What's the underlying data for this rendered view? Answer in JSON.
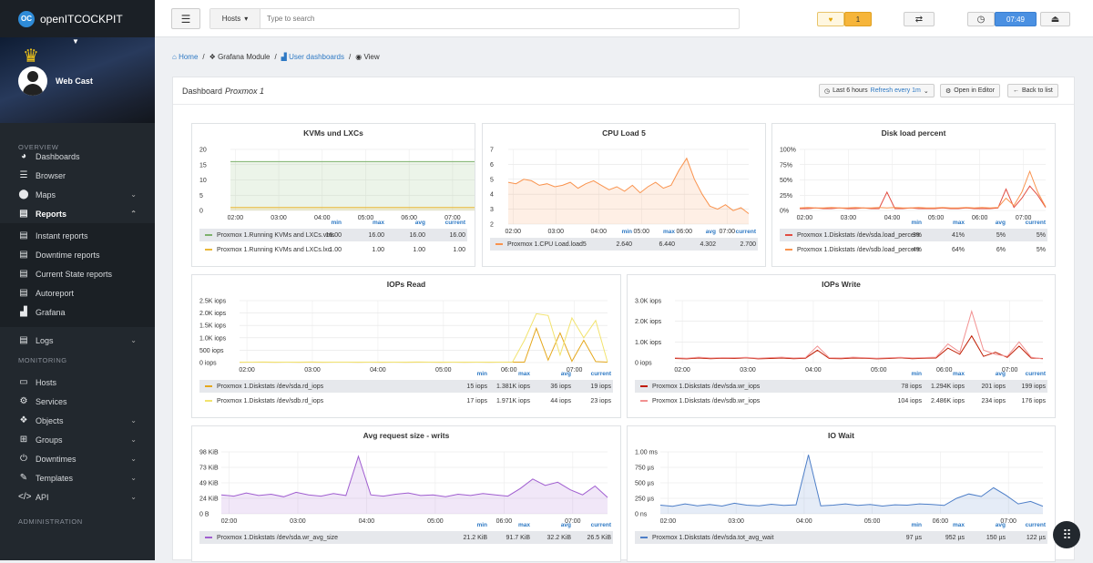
{
  "app": {
    "name": "openITCOCKPIT",
    "logo": "OC"
  },
  "profile": {
    "name": "Web Cast"
  },
  "sidebar": {
    "overview_label": "OVERVIEW",
    "monitoring_label": "MONITORING",
    "administration_label": "ADMINISTRATION",
    "overview": [
      {
        "label": "Dashboards",
        "icon": "dashboard-icon"
      },
      {
        "label": "Browser",
        "icon": "list-icon"
      },
      {
        "label": "Maps",
        "icon": "map-marker-icon"
      },
      {
        "label": "Reports",
        "icon": "file-icon"
      }
    ],
    "reports_sub": [
      {
        "label": "Instant reports",
        "icon": "file-icon"
      },
      {
        "label": "Downtime reports",
        "icon": "file-icon"
      },
      {
        "label": "Current State reports",
        "icon": "file-icon"
      },
      {
        "label": "Autoreport",
        "icon": "file-icon"
      },
      {
        "label": "Grafana",
        "icon": "area-chart-icon"
      }
    ],
    "logs": {
      "label": "Logs",
      "icon": "file-icon"
    },
    "monitoring": [
      {
        "label": "Hosts",
        "icon": "desktop-icon"
      },
      {
        "label": "Services",
        "icon": "cogs-icon"
      },
      {
        "label": "Objects",
        "icon": "cubes-icon"
      },
      {
        "label": "Groups",
        "icon": "sitemap-icon"
      },
      {
        "label": "Downtimes",
        "icon": "power-icon"
      },
      {
        "label": "Templates",
        "icon": "edit-icon"
      },
      {
        "label": "API",
        "icon": "code-icon"
      }
    ]
  },
  "topbar": {
    "hosts_label": "Hosts",
    "search_placeholder": "Type to search",
    "notification_count": "1",
    "time": "07:49"
  },
  "breadcrumb": {
    "home": "Home",
    "grafana": "Grafana Module",
    "user_dashboards": "User dashboards",
    "view": "View"
  },
  "panel": {
    "title_prefix": "Dashboard",
    "title_name": "Proxmox 1",
    "time_range": "Last 6 hours",
    "refresh": "Refresh every 1m",
    "open_editor": "Open in Editor",
    "back": "Back to list"
  },
  "legend_headers": {
    "min": "min",
    "max": "max",
    "avg": "avg",
    "current": "current"
  },
  "graphs": [
    {
      "title": "KVMs und LXCs",
      "chart_data": {
        "type": "area",
        "y_ticks": [
          "0",
          "5",
          "10",
          "15",
          "20"
        ],
        "x_ticks": [
          "02:00",
          "03:00",
          "04:00",
          "05:00",
          "06:00",
          "07:00"
        ],
        "ylim": [
          0,
          20
        ],
        "series": [
          {
            "name": "Proxmox 1.Running KVMs and LXCs.vms",
            "color": "#7eb26d",
            "values": [
              16,
              16,
              16,
              16,
              16,
              16,
              16,
              16,
              16,
              16,
              16,
              16,
              16,
              16,
              16,
              16,
              16,
              16,
              16,
              16,
              16,
              16,
              16,
              16,
              16,
              16,
              16,
              16,
              16,
              16,
              16,
              16
            ]
          },
          {
            "name": "Proxmox 1.Running KVMs and LXCs.lxc",
            "color": "#eab839",
            "values": [
              1,
              1,
              1,
              1,
              1,
              1,
              1,
              1,
              1,
              1,
              1,
              1,
              1,
              1,
              1,
              1,
              1,
              1,
              1,
              1,
              1,
              1,
              1,
              1,
              1,
              1,
              1,
              1,
              1,
              1,
              1,
              1
            ]
          }
        ]
      },
      "legend": [
        {
          "name": "Proxmox 1.Running KVMs and LXCs.vms",
          "color": "#7eb26d",
          "min": "16.00",
          "max": "16.00",
          "avg": "16.00",
          "current": "16.00"
        },
        {
          "name": "Proxmox 1.Running KVMs and LXCs.lxc",
          "color": "#eab839",
          "min": "1.00",
          "max": "1.00",
          "avg": "1.00",
          "current": "1.00"
        }
      ]
    },
    {
      "title": "CPU Load 5",
      "chart_data": {
        "type": "area",
        "y_ticks": [
          "2",
          "3",
          "4",
          "5",
          "6",
          "7"
        ],
        "x_ticks": [
          "02:00",
          "03:00",
          "04:00",
          "05:00",
          "06:00",
          "07:00"
        ],
        "ylim": [
          2,
          7
        ],
        "series": [
          {
            "name": "Proxmox 1.CPU Load.load5",
            "color": "#f9934e",
            "values": [
              4.8,
              4.7,
              5.0,
              4.9,
              4.6,
              4.7,
              4.5,
              4.6,
              4.8,
              4.4,
              4.7,
              4.9,
              4.6,
              4.3,
              4.5,
              4.2,
              4.6,
              4.1,
              4.5,
              4.8,
              4.4,
              4.6,
              5.6,
              6.4,
              5.0,
              4.0,
              3.2,
              3.0,
              3.3,
              2.9,
              3.1,
              2.7
            ]
          }
        ]
      },
      "legend": [
        {
          "name": "Proxmox 1.CPU Load.load5",
          "color": "#f9934e",
          "min": "2.640",
          "max": "6.440",
          "avg": "4.302",
          "current": "2.700"
        }
      ]
    },
    {
      "title": "Disk load percent",
      "chart_data": {
        "type": "line",
        "y_ticks": [
          "0%",
          "25%",
          "50%",
          "75%",
          "100%"
        ],
        "x_ticks": [
          "02:00",
          "03:00",
          "04:00",
          "05:00",
          "06:00",
          "07:00"
        ],
        "ylim": [
          0,
          100
        ],
        "series": [
          {
            "name": "Proxmox 1.Diskstats /dev/sda.load_percent",
            "color": "#e24d42",
            "values": [
              3,
              3,
              4,
              3,
              3,
              4,
              3,
              3,
              4,
              3,
              3,
              30,
              3,
              3,
              4,
              3,
              3,
              3,
              4,
              3,
              3,
              4,
              3,
              3,
              3,
              4,
              35,
              5,
              20,
              40,
              25,
              5
            ]
          },
          {
            "name": "Proxmox 1.Diskstats /dev/sdb.load_percent",
            "color": "#f9934e",
            "values": [
              4,
              5,
              4,
              4,
              5,
              4,
              4,
              5,
              4,
              4,
              5,
              4,
              5,
              4,
              4,
              5,
              4,
              4,
              5,
              4,
              4,
              5,
              4,
              5,
              4,
              5,
              20,
              8,
              30,
              64,
              30,
              6
            ]
          }
        ]
      },
      "legend": [
        {
          "name": "Proxmox 1.Diskstats /dev/sda.load_percent",
          "color": "#e24d42",
          "min": "3%",
          "max": "41%",
          "avg": "5%",
          "current": "5%"
        },
        {
          "name": "Proxmox 1.Diskstats /dev/sdb.load_percent",
          "color": "#f9934e",
          "min": "4%",
          "max": "64%",
          "avg": "6%",
          "current": "5%"
        }
      ]
    },
    {
      "title": "IOPs Read",
      "chart_data": {
        "type": "line",
        "y_ticks": [
          "0 iops",
          "500 iops",
          "1.0K iops",
          "1.5K iops",
          "2.0K iops",
          "2.5K iops"
        ],
        "x_ticks": [
          "02:00",
          "03:00",
          "04:00",
          "05:00",
          "06:00",
          "07:00"
        ],
        "ylim": [
          0,
          2500
        ],
        "series": [
          {
            "name": "Proxmox 1.Diskstats /dev/sda.rd_iops",
            "color": "#e5a81d",
            "values": [
              15,
              18,
              20,
              15,
              17,
              16,
              19,
              15,
              20,
              18,
              16,
              17,
              15,
              18,
              16,
              19,
              17,
              15,
              18,
              16,
              17,
              15,
              18,
              19,
              20,
              1381,
              100,
              1200,
              50,
              900,
              40,
              19
            ]
          },
          {
            "name": "Proxmox 1.Diskstats /dev/sdb.rd_iops",
            "color": "#f2e36e",
            "values": [
              17,
              20,
              22,
              18,
              19,
              17,
              21,
              18,
              20,
              19,
              17,
              18,
              20,
              19,
              17,
              21,
              18,
              17,
              19,
              20,
              18,
              17,
              19,
              21,
              900,
              1971,
              1900,
              300,
              1800,
              1000,
              1700,
              23
            ]
          }
        ]
      },
      "legend": [
        {
          "name": "Proxmox 1.Diskstats /dev/sda.rd_iops",
          "color": "#e5a81d",
          "min": "15 iops",
          "max": "1.381K iops",
          "avg": "36 iops",
          "current": "19 iops"
        },
        {
          "name": "Proxmox 1.Diskstats /dev/sdb.rd_iops",
          "color": "#f2e36e",
          "min": "17 iops",
          "max": "1.971K iops",
          "avg": "44 iops",
          "current": "23 iops"
        }
      ]
    },
    {
      "title": "IOPs Write",
      "chart_data": {
        "type": "line",
        "y_ticks": [
          "0 iops",
          "1.0K iops",
          "2.0K iops",
          "3.0K iops"
        ],
        "x_ticks": [
          "02:00",
          "03:00",
          "04:00",
          "05:00",
          "06:00",
          "07:00"
        ],
        "ylim": [
          0,
          3000
        ],
        "series": [
          {
            "name": "Proxmox 1.Diskstats /dev/sda.wr_iops",
            "color": "#bf1b00",
            "values": [
              200,
              180,
              220,
              190,
              210,
              200,
              230,
              180,
              200,
              220,
              190,
              210,
              600,
              200,
              190,
              220,
              210,
              180,
              200,
              230,
              190,
              210,
              220,
              700,
              400,
              1294,
              300,
              500,
              250,
              800,
              220,
              199
            ]
          },
          {
            "name": "Proxmox 1.Diskstats /dev/sdb.wr_iops",
            "color": "#f29191",
            "values": [
              230,
              210,
              260,
              220,
              240,
              230,
              250,
              210,
              240,
              260,
              220,
              240,
              800,
              230,
              220,
              260,
              240,
              210,
              230,
              250,
              220,
              240,
              260,
              900,
              500,
              2486,
              600,
              400,
              300,
              1000,
              260,
              176
            ]
          }
        ]
      },
      "legend": [
        {
          "name": "Proxmox 1.Diskstats /dev/sda.wr_iops",
          "color": "#bf1b00",
          "min": "78 iops",
          "max": "1.294K iops",
          "avg": "201 iops",
          "current": "199 iops"
        },
        {
          "name": "Proxmox 1.Diskstats /dev/sdb.wr_iops",
          "color": "#f29191",
          "min": "104 iops",
          "max": "2.486K iops",
          "avg": "234 iops",
          "current": "176 iops"
        }
      ]
    },
    {
      "title": "Avg request size - writs",
      "chart_data": {
        "type": "area",
        "y_ticks": [
          "0 B",
          "24 KiB",
          "49 KiB",
          "73 KiB",
          "98 KiB"
        ],
        "x_ticks": [
          "02:00",
          "03:00",
          "04:00",
          "05:00",
          "06:00",
          "07:00"
        ],
        "ylim": [
          0,
          98
        ],
        "series": [
          {
            "name": "Proxmox 1.Diskstats /dev/sda.wr_avg_size",
            "color": "#a05ed0",
            "values": [
              30,
              28,
              33,
              29,
              31,
              27,
              34,
              30,
              28,
              32,
              29,
              91,
              30,
              28,
              31,
              33,
              29,
              30,
              27,
              31,
              29,
              32,
              30,
              28,
              40,
              55,
              45,
              50,
              38,
              30,
              44,
              26
            ]
          }
        ]
      },
      "legend": [
        {
          "name": "Proxmox 1.Diskstats /dev/sda.wr_avg_size",
          "color": "#a05ed0",
          "min": "21.2 KiB",
          "max": "91.7 KiB",
          "avg": "32.2 KiB",
          "current": "26.5 KiB"
        }
      ]
    },
    {
      "title": "IO Wait",
      "chart_data": {
        "type": "area",
        "y_ticks": [
          "0 ns",
          "250 µs",
          "500 µs",
          "750 µs",
          "1.00 ms"
        ],
        "x_ticks": [
          "02:00",
          "03:00",
          "04:00",
          "05:00",
          "06:00",
          "07:00"
        ],
        "ylim": [
          0,
          1000
        ],
        "series": [
          {
            "name": "Proxmox 1.Diskstats /dev/sda.tot_avg_wait",
            "color": "#4e7fc8",
            "values": [
              140,
              120,
              160,
              130,
              150,
              125,
              170,
              140,
              130,
              155,
              135,
              145,
              952,
              130,
              140,
              160,
              135,
              150,
              125,
              145,
              140,
              160,
              150,
              135,
              250,
              320,
              280,
              420,
              300,
              160,
              200,
              122
            ]
          }
        ]
      },
      "legend": [
        {
          "name": "Proxmox 1.Diskstats /dev/sda.tot_avg_wait",
          "color": "#4e7fc8",
          "min": "97 µs",
          "max": "952 µs",
          "avg": "150 µs",
          "current": "122 µs"
        }
      ]
    }
  ]
}
